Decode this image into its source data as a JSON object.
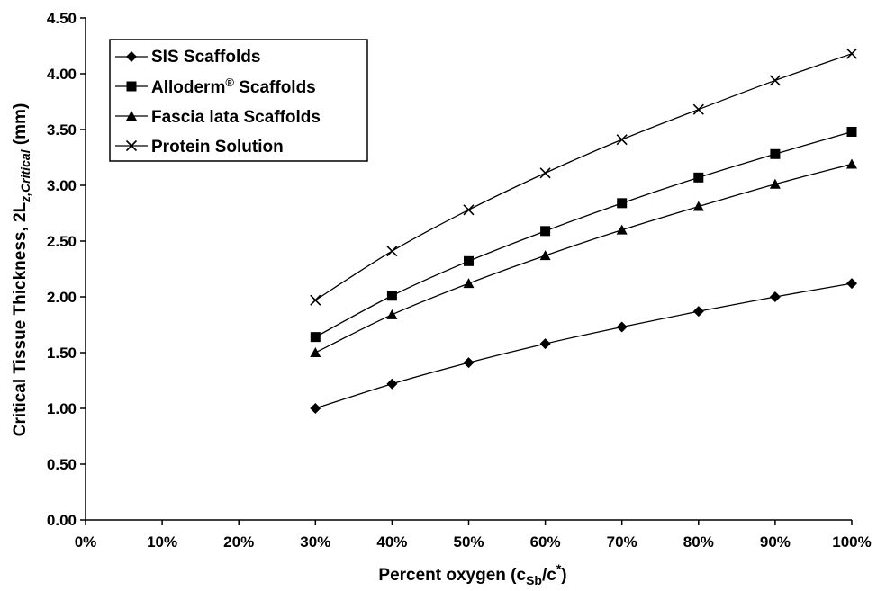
{
  "chart_data": {
    "type": "line",
    "x": [
      "30%",
      "40%",
      "50%",
      "60%",
      "70%",
      "80%",
      "90%",
      "100%"
    ],
    "x_values": [
      30,
      40,
      50,
      60,
      70,
      80,
      90,
      100
    ],
    "xlim": [
      0,
      100
    ],
    "xticks": [
      "0%",
      "10%",
      "20%",
      "30%",
      "40%",
      "50%",
      "60%",
      "70%",
      "80%",
      "90%",
      "100%"
    ],
    "ylim": [
      0,
      4.5
    ],
    "yticks": [
      "0.00",
      "0.50",
      "1.00",
      "1.50",
      "2.00",
      "2.50",
      "3.00",
      "3.50",
      "4.00",
      "4.50"
    ],
    "xlabel": {
      "main": "Percent oxygen (c",
      "sub1": "Sb",
      "mid": "/c",
      "sup": "*",
      "end": ")"
    },
    "ylabel": {
      "main": "Critical Tissue Thickness, 2L",
      "sub": "z,Critical",
      "end": " (mm)"
    },
    "grid": false,
    "legend_position": "top-left",
    "series": [
      {
        "name": "SIS Scaffolds",
        "marker": "diamond",
        "values": [
          1.0,
          1.22,
          1.41,
          1.58,
          1.73,
          1.87,
          2.0,
          2.12
        ]
      },
      {
        "name": "Alloderm",
        "name_sup": "®",
        "name_end": " Scaffolds",
        "marker": "square",
        "values": [
          1.64,
          2.01,
          2.32,
          2.59,
          2.84,
          3.07,
          3.28,
          3.48
        ]
      },
      {
        "name": "Fascia lata Scaffolds",
        "marker": "triangle",
        "values": [
          1.5,
          1.84,
          2.12,
          2.37,
          2.6,
          2.81,
          3.01,
          3.19
        ]
      },
      {
        "name": "Protein Solution",
        "marker": "x",
        "values": [
          1.97,
          2.41,
          2.78,
          3.11,
          3.41,
          3.68,
          3.94,
          4.18
        ]
      }
    ]
  }
}
